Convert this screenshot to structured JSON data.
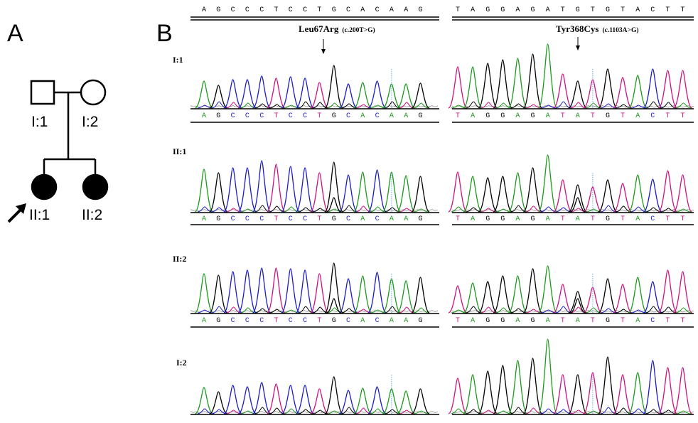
{
  "panels": {
    "a_label": "A",
    "b_label": "B"
  },
  "pedigree": {
    "members": [
      {
        "id": "I:1",
        "sex": "male",
        "affected": false
      },
      {
        "id": "I:2",
        "sex": "female",
        "affected": false
      },
      {
        "id": "II:1",
        "sex": "female",
        "affected": true,
        "proband": true
      },
      {
        "id": "II:2",
        "sex": "female",
        "affected": true
      }
    ]
  },
  "colors": {
    "A": "#1a9a1a",
    "C": "#1a1acc",
    "G": "#000000",
    "T": "#d01080",
    "cursor": "#66aadd"
  },
  "regions": [
    {
      "reference": "AGCCCTCCTGCACAAG",
      "variant_title": "Leu67Arg",
      "variant_notation": "(c.200T>G)",
      "variant_position": 9,
      "cursor_position": 13,
      "calls": {
        "I:1": "AGCCCTCCTGCACAAG",
        "II:1": "AGCCCTCCTGCACAAG",
        "II:2": "AGCCCTCCTGCACAAG",
        "I:2": ""
      }
    },
    {
      "reference": "TAGGAGATGTGTACTT",
      "variant_title": "Tyr368Cys",
      "variant_notation": "(c.1103A>G)",
      "variant_position": 8,
      "cursor_position": 9,
      "calls": {
        "I:1": "TAGGAGATATGTACTT",
        "II:1": "TAGGAGATATGTACTT",
        "II:2": "TAGGAGATATGTACTT",
        "I:2": ""
      }
    }
  ],
  "trace_rows": [
    {
      "label": "I:1",
      "het": false
    },
    {
      "label": "II:1",
      "het": true
    },
    {
      "label": "II:2",
      "het": true
    },
    {
      "label": "I:2",
      "het": false
    }
  ]
}
